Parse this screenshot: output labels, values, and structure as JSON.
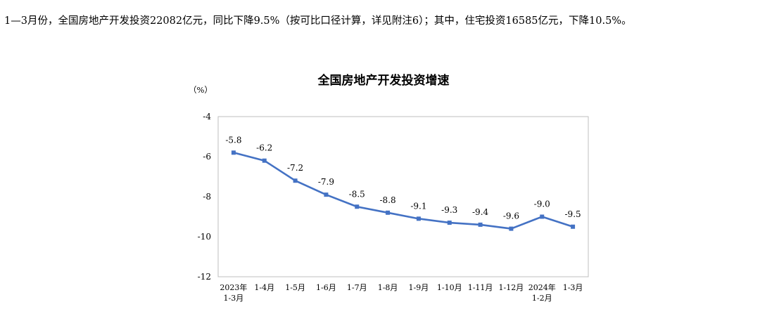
{
  "intro_text": "1—3月份，全国房地产开发投资22082亿元，同比下降9.5%（按可比口径计算，详见附注6）；其中，住宅投资16585亿元，下降10.5%。",
  "colors": {
    "line": "#4472C4",
    "grid": "#d9d9d9",
    "frame": "#bfbfbf"
  },
  "chart_data": {
    "type": "line",
    "title": "全国房地产开发投资增速",
    "unit": "（%）",
    "categories": [
      [
        "2023年",
        "1-3月"
      ],
      [
        "1-4月"
      ],
      [
        "1-5月"
      ],
      [
        "1-6月"
      ],
      [
        "1-7月"
      ],
      [
        "1-8月"
      ],
      [
        "1-9月"
      ],
      [
        "1-10月"
      ],
      [
        "1-11月"
      ],
      [
        "1-12月"
      ],
      [
        "2024年",
        "1-2月"
      ],
      [
        "1-3月"
      ]
    ],
    "series": [
      {
        "values": [
          -5.8,
          -6.2,
          -7.2,
          -7.9,
          -8.5,
          -8.8,
          -9.1,
          -9.3,
          -9.4,
          -9.6,
          -9.0,
          -9.5
        ],
        "labels": [
          "-5.8",
          "-6.2",
          "-7.2",
          "-7.9",
          "-8.5",
          "-8.8",
          "-9.1",
          "-9.3",
          "-9.4",
          "-9.6",
          "-9.0",
          "-9.5"
        ]
      }
    ],
    "ylim": [
      -12,
      -4
    ],
    "yticks": [
      -4,
      -6,
      -8,
      -10,
      -12
    ],
    "grid": false,
    "legend": "none"
  }
}
